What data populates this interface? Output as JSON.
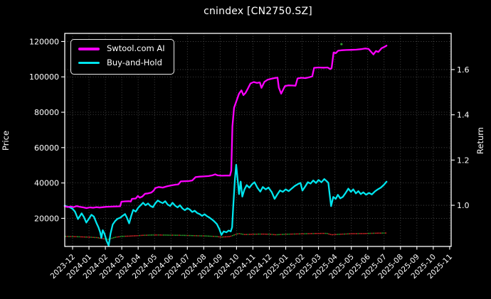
{
  "chart_data": {
    "type": "line",
    "title": "cnindex [CN2750.SZ]",
    "xlabel": "",
    "ylabel_left": "Price",
    "ylabel_right": "Return",
    "x_unit": "months since 2023-12 tick (decimal)",
    "x_tick_labels": [
      "2023-12",
      "2024-01",
      "2024-02",
      "2024-03",
      "2024-04",
      "2024-05",
      "2024-06",
      "2024-07",
      "2024-08",
      "2024-09",
      "2024-10",
      "2024-11",
      "2024-12",
      "2025-01",
      "2025-02",
      "2025-03",
      "2025-04",
      "2025-05",
      "2025-06",
      "2025-07",
      "2025-08",
      "2025-09",
      "2025-10",
      "2025-11"
    ],
    "xlim_months": [
      -0.477,
      23.09
    ],
    "ylim_left": [
      4100,
      124600
    ],
    "ylim_right": [
      0.818,
      1.76
    ],
    "y_ticks_left": [
      20000,
      40000,
      60000,
      80000,
      100000,
      120000
    ],
    "y_ticks_right": [
      1.0,
      1.2,
      1.4,
      1.6
    ],
    "grid": true,
    "legend_position": "upper left",
    "style": {
      "background": "#000000",
      "text": "#ffffff",
      "grid": "#999999",
      "spine": "#ffffff"
    },
    "series": [
      {
        "name": "Swtool.com AI",
        "color": "#ff00ff",
        "axis": "left",
        "width": 2.3,
        "points": [
          [
            -0.48,
            26800
          ],
          [
            -0.3,
            26400
          ],
          [
            -0.1,
            26700
          ],
          [
            0.05,
            26300
          ],
          [
            0.25,
            26900
          ],
          [
            0.45,
            26500
          ],
          [
            0.65,
            26200
          ],
          [
            0.85,
            25800
          ],
          [
            1.05,
            26200
          ],
          [
            1.25,
            26000
          ],
          [
            1.45,
            26300
          ],
          [
            1.65,
            26100
          ],
          [
            1.85,
            26300
          ],
          [
            2.05,
            26500
          ],
          [
            2.3,
            26600
          ],
          [
            2.6,
            26700
          ],
          [
            2.9,
            26800
          ],
          [
            2.98,
            29400
          ],
          [
            3.2,
            29600
          ],
          [
            3.45,
            29700
          ],
          [
            3.55,
            29500
          ],
          [
            3.62,
            31000
          ],
          [
            3.85,
            31200
          ],
          [
            3.98,
            32600
          ],
          [
            4.1,
            31700
          ],
          [
            4.25,
            32300
          ],
          [
            4.42,
            33900
          ],
          [
            4.6,
            34100
          ],
          [
            4.8,
            34600
          ],
          [
            4.95,
            35700
          ],
          [
            5.05,
            37100
          ],
          [
            5.25,
            37700
          ],
          [
            5.5,
            37400
          ],
          [
            5.75,
            38100
          ],
          [
            6.0,
            38600
          ],
          [
            6.25,
            39000
          ],
          [
            6.45,
            39200
          ],
          [
            6.6,
            40900
          ],
          [
            6.85,
            41000
          ],
          [
            7.1,
            41100
          ],
          [
            7.3,
            41400
          ],
          [
            7.5,
            43300
          ],
          [
            7.75,
            43600
          ],
          [
            8.0,
            43700
          ],
          [
            8.3,
            43900
          ],
          [
            8.55,
            44400
          ],
          [
            8.7,
            44900
          ],
          [
            8.85,
            44300
          ],
          [
            9.1,
            44100
          ],
          [
            9.35,
            44200
          ],
          [
            9.6,
            44200
          ],
          [
            9.68,
            47000
          ],
          [
            9.75,
            72000
          ],
          [
            9.85,
            82500
          ],
          [
            10.0,
            86500
          ],
          [
            10.15,
            90500
          ],
          [
            10.3,
            92400
          ],
          [
            10.42,
            89700
          ],
          [
            10.55,
            91000
          ],
          [
            10.7,
            93500
          ],
          [
            10.85,
            96300
          ],
          [
            11.05,
            97100
          ],
          [
            11.25,
            96600
          ],
          [
            11.42,
            96900
          ],
          [
            11.52,
            93800
          ],
          [
            11.7,
            97200
          ],
          [
            11.9,
            98400
          ],
          [
            12.1,
            98900
          ],
          [
            12.3,
            99300
          ],
          [
            12.5,
            99600
          ],
          [
            12.58,
            94000
          ],
          [
            12.72,
            90500
          ],
          [
            12.95,
            94800
          ],
          [
            13.15,
            95200
          ],
          [
            13.4,
            95100
          ],
          [
            13.6,
            95000
          ],
          [
            13.72,
            99100
          ],
          [
            13.95,
            99500
          ],
          [
            14.2,
            99300
          ],
          [
            14.45,
            99800
          ],
          [
            14.62,
            100300
          ],
          [
            14.73,
            105100
          ],
          [
            15.0,
            105300
          ],
          [
            15.3,
            105200
          ],
          [
            15.55,
            105300
          ],
          [
            15.72,
            104400
          ],
          [
            15.8,
            105000
          ],
          [
            15.92,
            113800
          ],
          [
            16.05,
            113400
          ],
          [
            16.2,
            114800
          ],
          [
            16.45,
            115100
          ],
          [
            16.7,
            115200
          ],
          [
            17.0,
            115300
          ],
          [
            17.3,
            115400
          ],
          [
            17.6,
            115700
          ],
          [
            17.85,
            116100
          ],
          [
            18.05,
            115800
          ],
          [
            18.35,
            112700
          ],
          [
            18.5,
            114600
          ],
          [
            18.65,
            114100
          ],
          [
            18.85,
            116200
          ],
          [
            19.0,
            116900
          ],
          [
            19.15,
            117700
          ]
        ]
      },
      {
        "name": "Buy-and-Hold",
        "color": "#00e5ee",
        "axis": "left",
        "width": 2.3,
        "points": [
          [
            -0.48,
            27200
          ],
          [
            -0.35,
            26700
          ],
          [
            -0.15,
            26200
          ],
          [
            0.0,
            25400
          ],
          [
            0.15,
            23800
          ],
          [
            0.33,
            19600
          ],
          [
            0.45,
            21300
          ],
          [
            0.55,
            22800
          ],
          [
            0.7,
            20600
          ],
          [
            0.84,
            17600
          ],
          [
            1.0,
            19800
          ],
          [
            1.15,
            22000
          ],
          [
            1.3,
            21000
          ],
          [
            1.45,
            17500
          ],
          [
            1.58,
            14900
          ],
          [
            1.68,
            12200
          ],
          [
            1.76,
            8900
          ],
          [
            1.84,
            13300
          ],
          [
            1.95,
            11200
          ],
          [
            2.08,
            7200
          ],
          [
            2.2,
            4600
          ],
          [
            2.32,
            11500
          ],
          [
            2.45,
            16500
          ],
          [
            2.6,
            18500
          ],
          [
            2.75,
            19800
          ],
          [
            2.9,
            20300
          ],
          [
            3.05,
            21400
          ],
          [
            3.2,
            22400
          ],
          [
            3.32,
            20200
          ],
          [
            3.45,
            17200
          ],
          [
            3.58,
            21500
          ],
          [
            3.7,
            24800
          ],
          [
            3.85,
            23800
          ],
          [
            4.0,
            26000
          ],
          [
            4.15,
            27400
          ],
          [
            4.3,
            28800
          ],
          [
            4.45,
            27400
          ],
          [
            4.6,
            28400
          ],
          [
            4.75,
            27000
          ],
          [
            4.9,
            26300
          ],
          [
            5.05,
            28500
          ],
          [
            5.2,
            30100
          ],
          [
            5.35,
            29200
          ],
          [
            5.5,
            28600
          ],
          [
            5.65,
            29700
          ],
          [
            5.8,
            27800
          ],
          [
            5.95,
            27000
          ],
          [
            6.1,
            28800
          ],
          [
            6.25,
            27200
          ],
          [
            6.4,
            26200
          ],
          [
            6.55,
            27400
          ],
          [
            6.7,
            25600
          ],
          [
            6.85,
            24600
          ],
          [
            7.0,
            25700
          ],
          [
            7.15,
            25000
          ],
          [
            7.3,
            23600
          ],
          [
            7.45,
            24300
          ],
          [
            7.6,
            23000
          ],
          [
            7.75,
            22400
          ],
          [
            7.9,
            21400
          ],
          [
            8.05,
            22300
          ],
          [
            8.2,
            21200
          ],
          [
            8.35,
            20400
          ],
          [
            8.5,
            19400
          ],
          [
            8.65,
            18200
          ],
          [
            8.8,
            16800
          ],
          [
            8.95,
            14000
          ],
          [
            9.08,
            10600
          ],
          [
            9.22,
            12600
          ],
          [
            9.38,
            12100
          ],
          [
            9.52,
            13100
          ],
          [
            9.65,
            12600
          ],
          [
            9.73,
            15000
          ],
          [
            9.8,
            27000
          ],
          [
            9.9,
            42000
          ],
          [
            9.98,
            50300
          ],
          [
            10.08,
            41000
          ],
          [
            10.15,
            33700
          ],
          [
            10.25,
            40800
          ],
          [
            10.35,
            32300
          ],
          [
            10.48,
            36300
          ],
          [
            10.62,
            38800
          ],
          [
            10.78,
            37300
          ],
          [
            10.95,
            39300
          ],
          [
            11.1,
            40400
          ],
          [
            11.28,
            37200
          ],
          [
            11.45,
            35100
          ],
          [
            11.6,
            37700
          ],
          [
            11.78,
            36400
          ],
          [
            11.95,
            37400
          ],
          [
            12.15,
            34800
          ],
          [
            12.32,
            31000
          ],
          [
            12.48,
            33400
          ],
          [
            12.65,
            35800
          ],
          [
            12.82,
            35000
          ],
          [
            13.0,
            36400
          ],
          [
            13.18,
            35400
          ],
          [
            13.35,
            36700
          ],
          [
            13.55,
            38300
          ],
          [
            13.75,
            39400
          ],
          [
            13.9,
            40000
          ],
          [
            14.02,
            35700
          ],
          [
            14.18,
            37900
          ],
          [
            14.35,
            40400
          ],
          [
            14.52,
            39700
          ],
          [
            14.68,
            41400
          ],
          [
            14.85,
            40000
          ],
          [
            15.0,
            41700
          ],
          [
            15.18,
            40400
          ],
          [
            15.35,
            42200
          ],
          [
            15.5,
            41000
          ],
          [
            15.6,
            40100
          ],
          [
            15.68,
            33500
          ],
          [
            15.77,
            26900
          ],
          [
            15.9,
            32100
          ],
          [
            16.05,
            31000
          ],
          [
            16.18,
            33300
          ],
          [
            16.33,
            31300
          ],
          [
            16.48,
            32100
          ],
          [
            16.65,
            34300
          ],
          [
            16.82,
            36800
          ],
          [
            16.98,
            35000
          ],
          [
            17.12,
            36400
          ],
          [
            17.28,
            34100
          ],
          [
            17.43,
            35400
          ],
          [
            17.58,
            33700
          ],
          [
            17.73,
            34700
          ],
          [
            17.9,
            33400
          ],
          [
            18.08,
            34400
          ],
          [
            18.25,
            33500
          ],
          [
            18.45,
            35300
          ],
          [
            18.62,
            36400
          ],
          [
            18.8,
            37400
          ],
          [
            18.98,
            38900
          ],
          [
            19.15,
            40700
          ]
        ]
      },
      {
        "name": "cnindex daily price (up/down colored dots)",
        "style": "dotted",
        "axis": "left",
        "colors": [
          "#d62728",
          "#2ca02c"
        ],
        "width": 1.5,
        "points": [
          [
            -0.48,
            9800
          ],
          [
            0.3,
            9600
          ],
          [
            0.9,
            9400
          ],
          [
            1.5,
            9100
          ],
          [
            1.9,
            8400
          ],
          [
            2.2,
            8100
          ],
          [
            2.6,
            9300
          ],
          [
            3.0,
            9800
          ],
          [
            3.6,
            10000
          ],
          [
            4.3,
            10400
          ],
          [
            5.0,
            10600
          ],
          [
            5.8,
            10500
          ],
          [
            6.6,
            10400
          ],
          [
            7.4,
            10200
          ],
          [
            8.2,
            10000
          ],
          [
            8.8,
            9700
          ],
          [
            9.1,
            9400
          ],
          [
            9.6,
            9700
          ],
          [
            9.95,
            10900
          ],
          [
            10.15,
            11400
          ],
          [
            10.5,
            10800
          ],
          [
            11.0,
            11000
          ],
          [
            11.5,
            11100
          ],
          [
            12.0,
            11000
          ],
          [
            12.4,
            10700
          ],
          [
            13.0,
            11000
          ],
          [
            13.8,
            11200
          ],
          [
            14.7,
            11400
          ],
          [
            15.5,
            11500
          ],
          [
            15.8,
            10700
          ],
          [
            16.3,
            11000
          ],
          [
            17.0,
            11300
          ],
          [
            17.8,
            11400
          ],
          [
            18.5,
            11600
          ],
          [
            19.15,
            11700
          ]
        ]
      }
    ],
    "markers": [
      {
        "shape": "dot",
        "color": "#2ca02c",
        "x_month": 16.4,
        "y": 118500
      }
    ]
  }
}
